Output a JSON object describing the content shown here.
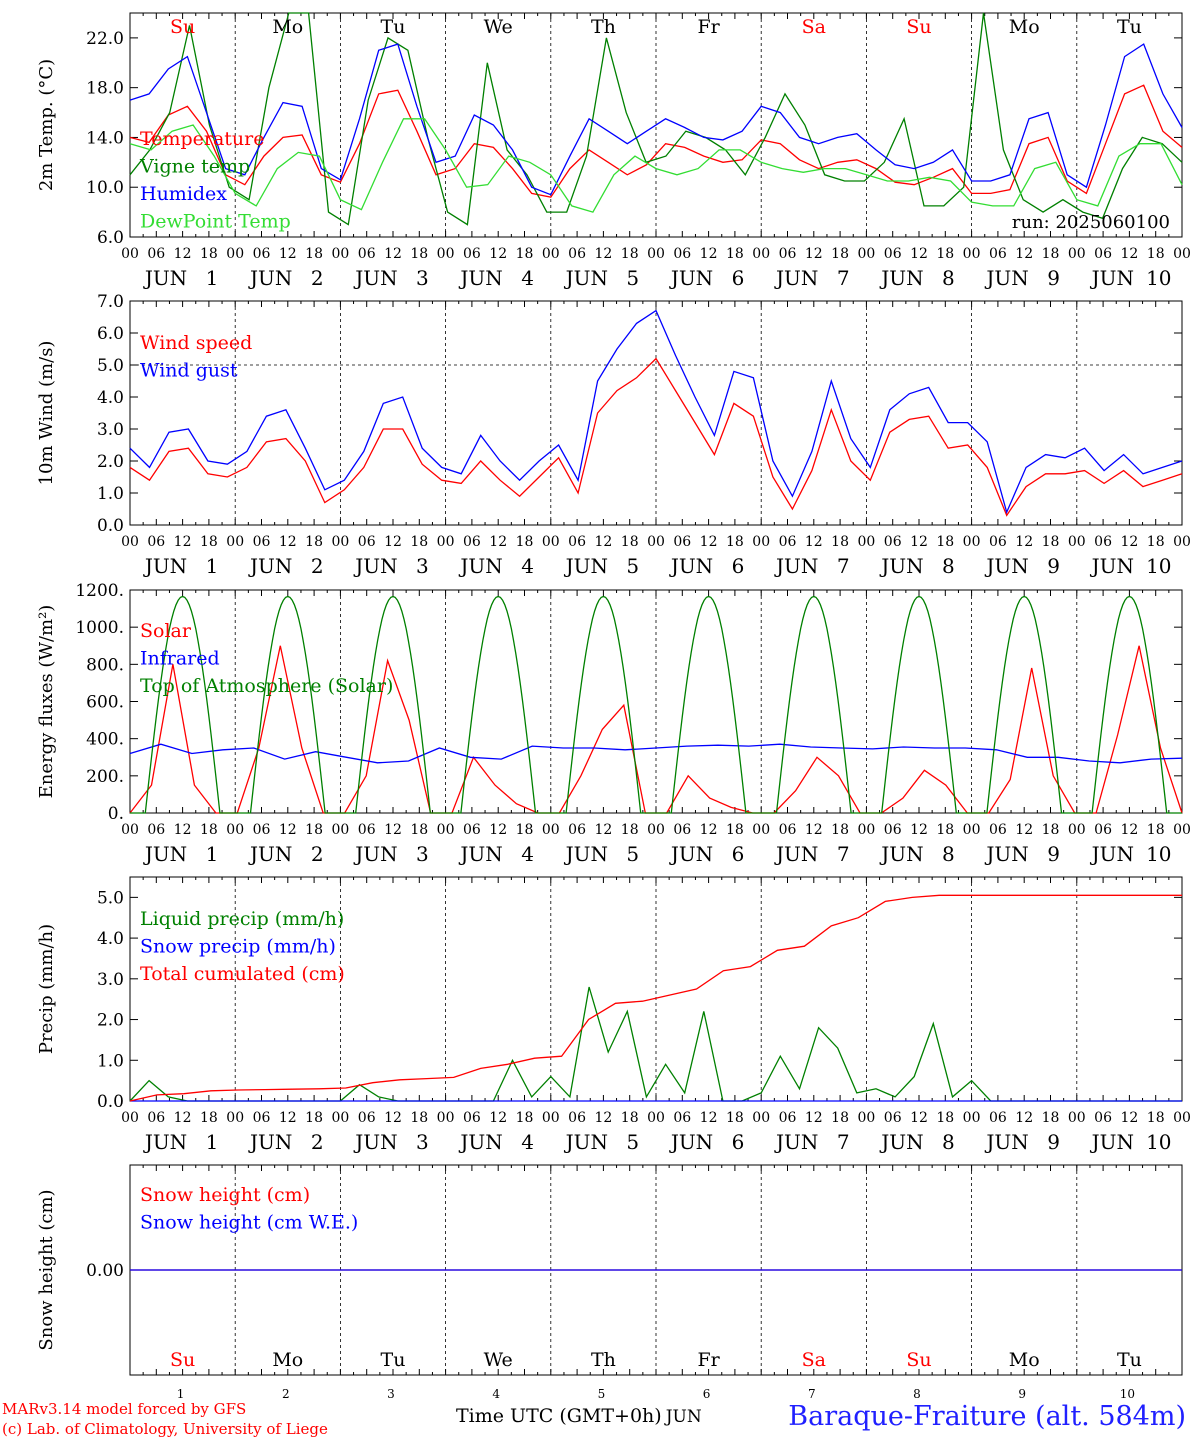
{
  "run_label": "run: 2025060100",
  "day_names": [
    "Su",
    "Mo",
    "Tu",
    "We",
    "Th",
    "Fr",
    "Sa",
    "Su",
    "Mo",
    "Tu"
  ],
  "day_name_colors": [
    "#ff0000",
    "#000000",
    "#000000",
    "#000000",
    "#000000",
    "#000000",
    "#ff0000",
    "#ff0000",
    "#000000",
    "#000000"
  ],
  "day_numbers": [
    "1",
    "2",
    "3",
    "4",
    "5",
    "6",
    "7",
    "8",
    "9",
    "10"
  ],
  "month_label": "JUN",
  "hour_ticks": [
    "00",
    "06",
    "12",
    "18"
  ],
  "footer": {
    "model": "MARv3.14 model forced by GFS",
    "credit": "(c) Lab. of Climatology, University of Liege",
    "x_title": "Time UTC (GMT+0h)",
    "month_small": "JUN",
    "station": "Baraque-Fraiture (alt. 584m)"
  },
  "colors": {
    "red": "#ff0000",
    "dark_green": "#008000",
    "blue": "#0000ff",
    "light_green": "#33dd33"
  },
  "chart_data": [
    {
      "type": "line",
      "ylabel": "2m Temp. (°C)",
      "ylim": [
        6,
        24
      ],
      "yticks": [
        "6.0",
        "10.0",
        "14.0",
        "18.0",
        "22.0"
      ],
      "ytick_values": [
        6,
        10,
        14,
        18,
        22
      ],
      "x_unit": "hours since JUN 1 00 UTC (6-hourly)",
      "series": [
        {
          "name": "Temperature",
          "color": "#ff0000",
          "values": [
            14.0,
            13.6,
            15.8,
            16.5,
            14.5,
            11.0,
            10.2,
            12.5,
            14.0,
            14.2,
            11.0,
            10.4,
            13.5,
            17.5,
            17.8,
            14.5,
            11.0,
            11.5,
            13.5,
            13.2,
            11.5,
            9.5,
            9.2,
            11.5,
            13.0,
            12.0,
            11.0,
            11.8,
            13.5,
            13.2,
            12.5,
            12.0,
            12.2,
            13.8,
            13.5,
            12.2,
            11.5,
            12.0,
            12.2,
            11.5,
            10.4,
            10.2,
            10.8,
            11.5,
            9.5,
            9.5,
            9.8,
            13.5,
            14.0,
            10.5,
            9.5,
            13.5,
            17.5,
            18.2,
            14.5,
            13.2
          ]
        },
        {
          "name": "Vigne temp",
          "color": "#008000",
          "values": [
            11.0,
            13.0,
            16.0,
            23.0,
            15.0,
            10.0,
            9.0,
            18.0,
            24.0,
            24.0,
            8.0,
            7.0,
            17.0,
            22.0,
            21.0,
            14.0,
            8.0,
            7.0,
            20.0,
            13.0,
            11.0,
            8.0,
            8.0,
            12.5,
            22.0,
            16.0,
            12.0,
            12.5,
            14.5,
            14.0,
            13.0,
            11.0,
            14.0,
            17.5,
            15.0,
            11.0,
            10.5,
            10.5,
            12.0,
            15.5,
            8.5,
            8.5,
            10.0,
            24.0,
            13.0,
            9.0,
            8.0,
            9.0,
            8.0,
            7.5,
            11.5,
            14.0,
            13.5,
            12.0
          ]
        },
        {
          "name": "Humidex",
          "color": "#0000ff",
          "values": [
            17.0,
            17.5,
            19.5,
            20.5,
            16.0,
            11.5,
            11.0,
            14.0,
            16.8,
            16.5,
            11.5,
            10.6,
            15.5,
            21.0,
            21.5,
            16.5,
            12.0,
            12.5,
            15.8,
            15.0,
            13.0,
            10.0,
            9.4,
            12.5,
            15.5,
            14.5,
            13.5,
            14.5,
            15.5,
            14.8,
            14.0,
            13.8,
            14.5,
            16.5,
            16.0,
            14.0,
            13.5,
            14.0,
            14.3,
            13.0,
            11.8,
            11.5,
            12.0,
            13.0,
            10.5,
            10.5,
            11.0,
            15.5,
            16.0,
            11.0,
            10.0,
            15.0,
            20.5,
            21.5,
            17.5,
            14.8
          ]
        },
        {
          "name": "DewPoint Temp",
          "color": "#33dd33",
          "values": [
            13.5,
            13.0,
            14.5,
            15.0,
            12.5,
            9.5,
            8.5,
            11.5,
            12.8,
            12.5,
            9.0,
            8.2,
            12.0,
            15.5,
            15.5,
            13.0,
            10.0,
            10.2,
            12.5,
            12.0,
            11.0,
            8.5,
            8.0,
            11.0,
            12.5,
            11.5,
            11.0,
            11.5,
            13.0,
            13.0,
            12.0,
            11.5,
            11.2,
            11.5,
            11.5,
            11.0,
            10.5,
            10.5,
            10.8,
            10.5,
            8.8,
            8.5,
            8.5,
            11.5,
            12.0,
            9.0,
            8.5,
            12.5,
            13.5,
            13.5,
            10.2
          ]
        }
      ],
      "legend_placement": "left"
    },
    {
      "type": "line",
      "ylabel": "10m Wind (m/s)",
      "ylim": [
        0,
        7
      ],
      "yticks": [
        "0.0",
        "1.0",
        "2.0",
        "3.0",
        "4.0",
        "5.0",
        "6.0",
        "7.0"
      ],
      "ytick_values": [
        0,
        1,
        2,
        3,
        4,
        5,
        6,
        7
      ],
      "dashed_reference_y": 5.0,
      "x_unit": "hours since JUN 1 00 UTC (6-hourly)",
      "series": [
        {
          "name": "Wind speed",
          "color": "#ff0000",
          "values": [
            1.8,
            1.4,
            2.3,
            2.4,
            1.6,
            1.5,
            1.8,
            2.6,
            2.7,
            2.0,
            0.7,
            1.1,
            1.8,
            3.0,
            3.0,
            1.9,
            1.4,
            1.3,
            2.0,
            1.4,
            0.9,
            1.5,
            2.1,
            1.0,
            3.5,
            4.2,
            4.6,
            5.2,
            4.2,
            3.2,
            2.2,
            3.8,
            3.4,
            1.5,
            0.5,
            1.7,
            3.6,
            2.0,
            1.4,
            2.9,
            3.3,
            3.4,
            2.4,
            2.5,
            1.8,
            0.3,
            1.2,
            1.6,
            1.6,
            1.7,
            1.3,
            1.7,
            1.2,
            1.4,
            1.6
          ]
        },
        {
          "name": "Wind gust",
          "color": "#0000ff",
          "values": [
            2.4,
            1.8,
            2.9,
            3.0,
            2.0,
            1.9,
            2.3,
            3.4,
            3.6,
            2.4,
            1.1,
            1.4,
            2.3,
            3.8,
            4.0,
            2.4,
            1.8,
            1.6,
            2.8,
            2.0,
            1.4,
            2.0,
            2.5,
            1.4,
            4.5,
            5.5,
            6.3,
            6.7,
            5.3,
            4.0,
            2.8,
            4.8,
            4.6,
            2.0,
            0.9,
            2.3,
            4.5,
            2.7,
            1.8,
            3.6,
            4.1,
            4.3,
            3.2,
            3.2,
            2.6,
            0.4,
            1.8,
            2.2,
            2.1,
            2.4,
            1.7,
            2.2,
            1.6,
            1.8,
            2.0
          ]
        }
      ],
      "legend_placement": "left"
    },
    {
      "type": "line",
      "ylabel": "Energy fluxes (W/m²)",
      "ylim": [
        0,
        1200
      ],
      "yticks": [
        "0.",
        "200.",
        "400.",
        "600.",
        "800.",
        "1000.",
        "1200."
      ],
      "ytick_values": [
        0,
        200,
        400,
        600,
        800,
        1000,
        1200
      ],
      "x_unit": "hours since JUN 1 00 UTC (6-hourly)",
      "series": [
        {
          "name": "Solar",
          "color": "#ff0000",
          "values": [
            0,
            150,
            800,
            150,
            0,
            0,
            350,
            900,
            350,
            0,
            0,
            200,
            820,
            500,
            0,
            0,
            300,
            150,
            50,
            0,
            0,
            200,
            450,
            580,
            0,
            0,
            200,
            80,
            30,
            0,
            0,
            120,
            300,
            200,
            0,
            0,
            80,
            230,
            150,
            0,
            0,
            180,
            780,
            200,
            0,
            0,
            420,
            900,
            350,
            0
          ]
        },
        {
          "name": "Infrared",
          "color": "#0000ff",
          "values": [
            320,
            370,
            320,
            340,
            350,
            290,
            330,
            300,
            270,
            280,
            350,
            300,
            290,
            360,
            350,
            350,
            340,
            350,
            360,
            365,
            360,
            370,
            355,
            350,
            345,
            355,
            350,
            350,
            340,
            300,
            300,
            280,
            270,
            290,
            295
          ]
        },
        {
          "name": "Top of Atmosphere (Solar)",
          "color": "#008000",
          "daily_peak": 1165,
          "sunrise_hour": 3.5,
          "sunset_hour": 20.5
        }
      ],
      "legend_placement": "left"
    },
    {
      "type": "line",
      "ylabel": "Precip (mm/h)",
      "ylim": [
        0,
        5.5
      ],
      "yticks": [
        "0.0",
        "1.0",
        "2.0",
        "3.0",
        "4.0",
        "5.0"
      ],
      "ytick_values": [
        0,
        1,
        2,
        3,
        4,
        5
      ],
      "x_unit": "hours since JUN 1 00 UTC (6-hourly)",
      "series": [
        {
          "name": "Liquid precip (mm/h)",
          "color": "#008000",
          "values": [
            0,
            0.5,
            0.1,
            0,
            0,
            0,
            0,
            0,
            0,
            0,
            0,
            0,
            0.4,
            0.1,
            0,
            0,
            0,
            0,
            0,
            0,
            1.0,
            0.1,
            0.6,
            0.1,
            2.8,
            1.2,
            2.2,
            0.1,
            0.9,
            0.2,
            2.2,
            0,
            0,
            0.2,
            1.1,
            0.3,
            1.8,
            1.3,
            0.2,
            0.3,
            0.1,
            0.6,
            1.9,
            0.1,
            0.5,
            0,
            0,
            0,
            0,
            0,
            0,
            0,
            0,
            0,
            0,
            0
          ]
        },
        {
          "name": "Snow precip (mm/h)",
          "color": "#0000ff",
          "values": [
            0
          ]
        },
        {
          "name": "Total cumulated (cm)",
          "color": "#ff0000",
          "values": [
            0.0,
            0.15,
            0.18,
            0.25,
            0.27,
            0.28,
            0.29,
            0.3,
            0.32,
            0.45,
            0.52,
            0.55,
            0.58,
            0.8,
            0.9,
            1.05,
            1.1,
            2.0,
            2.4,
            2.45,
            2.6,
            2.75,
            3.2,
            3.3,
            3.7,
            3.8,
            4.3,
            4.5,
            4.9,
            5.0,
            5.05,
            5.05,
            5.05,
            5.05,
            5.05,
            5.05,
            5.05,
            5.05,
            5.05,
            5.05
          ]
        }
      ],
      "legend_placement": "left"
    },
    {
      "type": "line",
      "ylabel": "Snow height (cm)",
      "yticks": [
        "0.00"
      ],
      "ytick_values": [
        0
      ],
      "series": [
        {
          "name": "Snow height (cm)",
          "color": "#ff0000",
          "values": [
            0
          ]
        },
        {
          "name": "Snow height (cm W.E.)",
          "color": "#0000ff",
          "values": [
            0
          ]
        }
      ],
      "legend_placement": "top-left"
    }
  ]
}
